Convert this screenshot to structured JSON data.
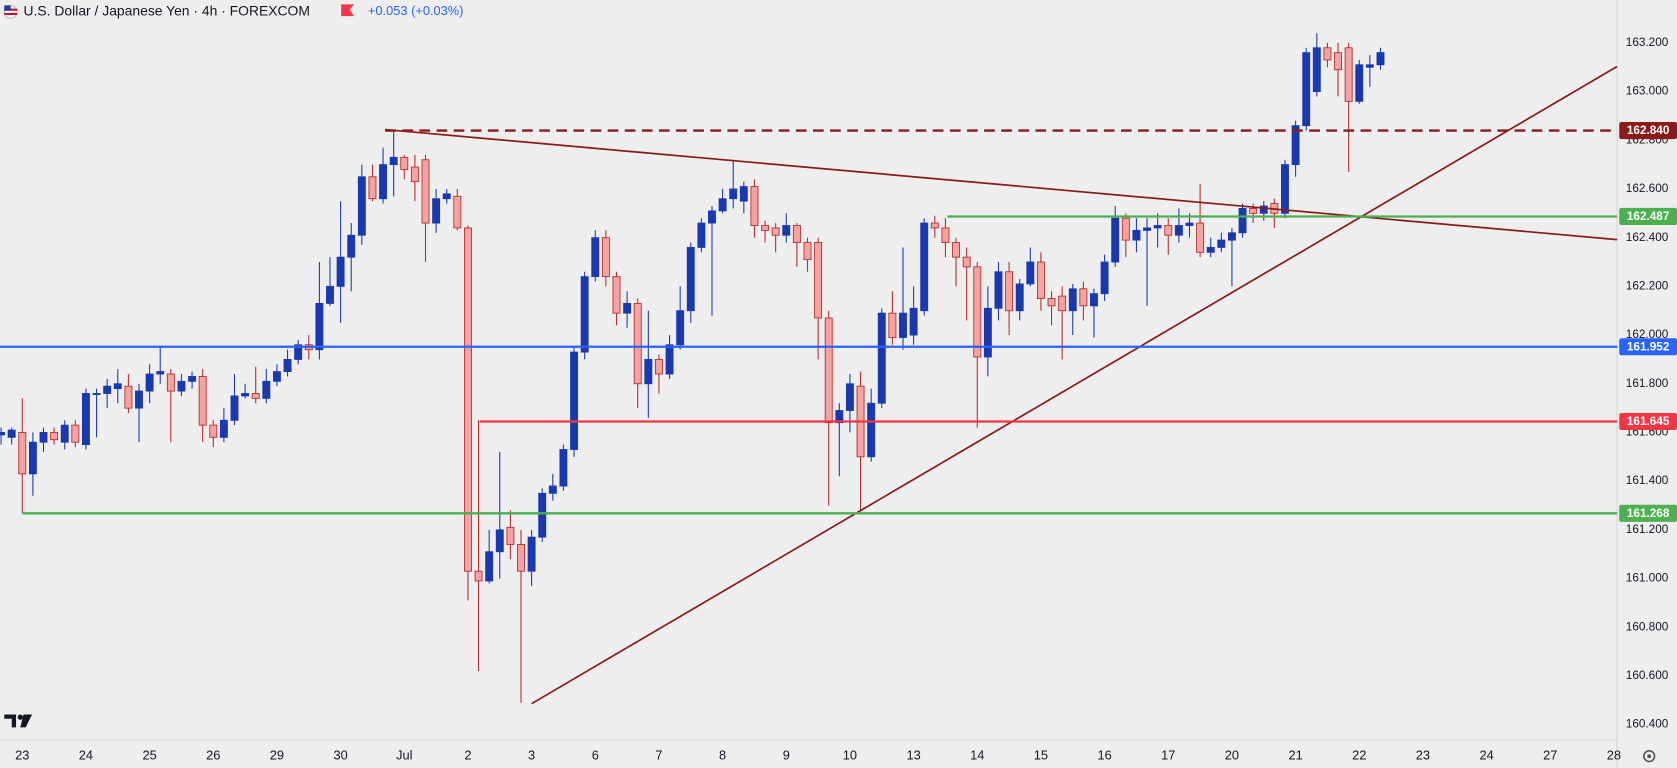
{
  "chart_data": {
    "type": "candlestick",
    "title": "U.S. Dollar / Japanese Yen · 4h · FOREXCOM",
    "change": "+0.053 (+0.03%)",
    "up_color": "#1a39ae",
    "down_color": "#f4a3a3",
    "down_border": "#b52a2a",
    "grid": false,
    "xlim": [
      -0.1,
      152.3
    ],
    "ylim": [
      160.345,
      163.376
    ],
    "xticks": [
      {
        "value": 2,
        "label": "23"
      },
      {
        "value": 8,
        "label": "24"
      },
      {
        "value": 14,
        "label": "25"
      },
      {
        "value": 20,
        "label": "26"
      },
      {
        "value": 26,
        "label": "29"
      },
      {
        "value": 32,
        "label": "30"
      },
      {
        "value": 38,
        "label": "Jul"
      },
      {
        "value": 44,
        "label": "2"
      },
      {
        "value": 50,
        "label": "3"
      },
      {
        "value": 56,
        "label": "6"
      },
      {
        "value": 62,
        "label": "7"
      },
      {
        "value": 68,
        "label": "8"
      },
      {
        "value": 74,
        "label": "9"
      },
      {
        "value": 80,
        "label": "10"
      },
      {
        "value": 86,
        "label": "13"
      },
      {
        "value": 92,
        "label": "14"
      },
      {
        "value": 98,
        "label": "15"
      },
      {
        "value": 104,
        "label": "16"
      },
      {
        "value": 110,
        "label": "17"
      },
      {
        "value": 116,
        "label": "20"
      },
      {
        "value": 122,
        "label": "21"
      },
      {
        "value": 128,
        "label": "22"
      },
      {
        "value": 134,
        "label": "23"
      },
      {
        "value": 140,
        "label": "24"
      },
      {
        "value": 146,
        "label": "27"
      },
      {
        "value": 152,
        "label": "28"
      }
    ],
    "yticks": [
      {
        "value": 160.4,
        "label": "160.400"
      },
      {
        "value": 160.6,
        "label": "160.600"
      },
      {
        "value": 160.8,
        "label": "160.800"
      },
      {
        "value": 161.0,
        "label": "161.000"
      },
      {
        "value": 161.2,
        "label": "161.200"
      },
      {
        "value": 161.4,
        "label": "161.400"
      },
      {
        "value": 161.6,
        "label": "161.600"
      },
      {
        "value": 161.8,
        "label": "161.800"
      },
      {
        "value": 162.0,
        "label": "162.000"
      },
      {
        "value": 162.2,
        "label": "162.200"
      },
      {
        "value": 162.4,
        "label": "162.400"
      },
      {
        "value": 162.6,
        "label": "162.600"
      },
      {
        "value": 162.8,
        "label": "162.800"
      },
      {
        "value": 163.0,
        "label": "163.000"
      },
      {
        "value": 163.2,
        "label": "163.200"
      }
    ],
    "candles": {
      "x": [
        0,
        1,
        2,
        3,
        4,
        5,
        6,
        7,
        8,
        9,
        10,
        11,
        12,
        13,
        14,
        15,
        16,
        17,
        18,
        19,
        20,
        21,
        22,
        23,
        24,
        25,
        26,
        27,
        28,
        29,
        30,
        31,
        32,
        33,
        34,
        35,
        36,
        37,
        38,
        39,
        40,
        41,
        42,
        43,
        44,
        45,
        46,
        47,
        48,
        49,
        50,
        51,
        52,
        53,
        54,
        55,
        56,
        57,
        58,
        59,
        60,
        61,
        62,
        63,
        64,
        65,
        66,
        67,
        68,
        69,
        70,
        71,
        72,
        73,
        74,
        75,
        76,
        77,
        78,
        79,
        80,
        81,
        82,
        83,
        84,
        85,
        86,
        87,
        88,
        89,
        90,
        91,
        92,
        93,
        94,
        95,
        96,
        97,
        98,
        99,
        100,
        101,
        102,
        103,
        104,
        105,
        106,
        107,
        108,
        109,
        110,
        111,
        112,
        113,
        114,
        115,
        116,
        117,
        118,
        119,
        120,
        121,
        122,
        123,
        124,
        125,
        126,
        127,
        128,
        129,
        130
      ],
      "open": [
        161.59,
        161.58,
        161.6,
        161.43,
        161.56,
        161.6,
        161.56,
        161.63,
        161.55,
        161.76,
        161.76,
        161.78,
        161.79,
        161.7,
        161.77,
        161.84,
        161.84,
        161.77,
        161.81,
        161.83,
        161.63,
        161.58,
        161.65,
        161.75,
        161.76,
        161.74,
        161.81,
        161.85,
        161.9,
        161.96,
        161.94,
        162.13,
        162.2,
        162.32,
        162.41,
        162.65,
        162.56,
        162.7,
        162.73,
        162.69,
        162.72,
        162.46,
        162.56,
        162.57,
        162.44,
        161.03,
        160.99,
        161.11,
        161.21,
        161.14,
        161.03,
        161.17,
        161.35,
        161.38,
        161.53,
        161.93,
        162.24,
        162.4,
        162.24,
        162.09,
        162.13,
        161.8,
        161.9,
        161.84,
        161.96,
        162.1,
        162.36,
        162.46,
        162.51,
        162.56,
        162.55,
        162.61,
        162.45,
        162.44,
        162.41,
        162.45,
        162.38,
        162.38,
        162.07,
        161.64,
        161.69,
        161.79,
        161.5,
        161.72,
        162.09,
        161.99,
        162.0,
        162.1,
        162.46,
        162.44,
        162.38,
        162.32,
        162.28,
        161.91,
        162.11,
        162.26,
        162.1,
        162.21,
        162.3,
        162.15,
        162.16,
        162.1,
        162.19,
        162.12,
        162.17,
        162.3,
        162.48,
        162.39,
        162.43,
        162.44,
        162.45,
        162.41,
        162.45,
        162.46,
        162.34,
        162.36,
        162.39,
        162.42,
        162.52,
        162.5,
        162.54,
        162.5,
        162.7,
        162.86,
        163.0,
        163.18,
        163.16,
        163.18,
        162.96,
        163.1,
        163.11
      ],
      "high": [
        161.62,
        161.62,
        161.74,
        161.6,
        161.62,
        161.62,
        161.65,
        161.65,
        161.78,
        161.78,
        161.82,
        161.86,
        161.84,
        161.8,
        161.88,
        161.95,
        161.86,
        161.84,
        161.85,
        161.86,
        161.65,
        161.7,
        161.84,
        161.8,
        161.87,
        161.86,
        161.88,
        161.94,
        161.98,
        162.0,
        162.3,
        162.32,
        162.55,
        162.46,
        162.7,
        162.7,
        162.77,
        162.84,
        162.74,
        162.74,
        162.74,
        162.6,
        162.6,
        162.6,
        162.45,
        161.65,
        161.2,
        161.52,
        161.28,
        161.2,
        161.2,
        161.37,
        161.43,
        161.55,
        161.95,
        162.26,
        162.43,
        162.43,
        162.26,
        162.18,
        162.15,
        162.1,
        161.92,
        162.0,
        162.2,
        162.38,
        162.48,
        162.53,
        162.6,
        162.72,
        162.63,
        162.64,
        162.47,
        162.46,
        162.5,
        162.46,
        162.4,
        162.4,
        162.1,
        161.72,
        161.84,
        161.85,
        161.78,
        162.11,
        162.18,
        162.36,
        162.2,
        162.48,
        162.49,
        162.48,
        162.4,
        162.36,
        162.3,
        162.2,
        162.3,
        162.3,
        162.23,
        162.36,
        162.34,
        162.18,
        162.2,
        162.21,
        162.22,
        162.19,
        162.33,
        162.53,
        162.5,
        162.48,
        162.48,
        162.5,
        162.48,
        162.52,
        162.5,
        162.62,
        162.4,
        162.42,
        162.44,
        162.54,
        162.54,
        162.55,
        162.56,
        162.72,
        162.88,
        163.18,
        163.24,
        163.2,
        163.2,
        163.2,
        163.13,
        163.15,
        163.18
      ],
      "low": [
        161.55,
        161.55,
        161.27,
        161.34,
        161.52,
        161.55,
        161.53,
        161.54,
        161.53,
        161.58,
        161.7,
        161.72,
        161.68,
        161.56,
        161.72,
        161.8,
        161.56,
        161.75,
        161.78,
        161.56,
        161.54,
        161.56,
        161.63,
        161.74,
        161.72,
        161.72,
        161.79,
        161.83,
        161.88,
        161.9,
        161.9,
        162.12,
        162.05,
        162.18,
        162.37,
        162.55,
        162.54,
        162.57,
        162.64,
        162.55,
        162.3,
        162.42,
        162.54,
        162.43,
        160.91,
        160.62,
        160.98,
        161.0,
        161.08,
        160.49,
        160.97,
        161.15,
        161.32,
        161.36,
        161.5,
        161.9,
        162.22,
        162.2,
        162.04,
        162.03,
        161.7,
        161.66,
        161.76,
        161.82,
        161.94,
        162.05,
        162.34,
        162.08,
        162.5,
        162.52,
        162.5,
        162.4,
        162.38,
        162.34,
        162.38,
        162.28,
        162.26,
        161.9,
        161.3,
        161.42,
        161.6,
        161.28,
        161.48,
        161.7,
        161.96,
        161.94,
        161.96,
        162.08,
        162.4,
        162.32,
        162.2,
        162.06,
        161.62,
        161.83,
        162.06,
        162.0,
        162.06,
        162.2,
        162.1,
        162.04,
        161.9,
        162.0,
        162.06,
        161.99,
        162.14,
        162.28,
        162.32,
        162.34,
        162.12,
        162.36,
        162.33,
        162.38,
        162.4,
        162.32,
        162.32,
        162.34,
        162.2,
        162.4,
        162.46,
        162.47,
        162.44,
        162.48,
        162.65,
        162.84,
        162.98,
        163.1,
        162.98,
        162.67,
        162.95,
        163.02,
        163.09
      ],
      "close": [
        161.6,
        161.61,
        161.43,
        161.56,
        161.6,
        161.57,
        161.63,
        161.56,
        161.76,
        161.76,
        161.79,
        161.8,
        161.7,
        161.77,
        161.84,
        161.85,
        161.77,
        161.81,
        161.83,
        161.63,
        161.58,
        161.65,
        161.75,
        161.76,
        161.74,
        161.81,
        161.85,
        161.9,
        161.96,
        161.94,
        162.13,
        162.2,
        162.32,
        162.41,
        162.65,
        162.56,
        162.7,
        162.73,
        162.68,
        162.63,
        162.46,
        162.56,
        162.58,
        162.44,
        161.03,
        160.99,
        161.11,
        161.2,
        161.14,
        161.03,
        161.17,
        161.35,
        161.38,
        161.53,
        161.93,
        162.24,
        162.4,
        162.24,
        162.09,
        162.13,
        161.8,
        161.9,
        161.84,
        161.96,
        162.1,
        162.36,
        162.46,
        162.51,
        162.56,
        162.6,
        162.61,
        162.45,
        162.43,
        162.41,
        162.45,
        162.38,
        162.31,
        162.07,
        161.64,
        161.69,
        161.8,
        161.5,
        161.72,
        162.09,
        161.99,
        162.09,
        162.11,
        162.46,
        162.44,
        162.38,
        162.32,
        162.28,
        161.91,
        162.11,
        162.26,
        162.1,
        162.21,
        162.3,
        162.15,
        162.12,
        162.1,
        162.19,
        162.12,
        162.17,
        162.3,
        162.48,
        162.39,
        162.43,
        162.44,
        162.45,
        162.41,
        162.45,
        162.46,
        162.34,
        162.36,
        162.39,
        162.42,
        162.52,
        162.5,
        162.53,
        162.5,
        162.7,
        162.86,
        163.16,
        163.18,
        163.13,
        163.09,
        162.96,
        163.11,
        163.11,
        163.16
      ]
    },
    "levels": [
      {
        "value": 162.84,
        "label": "162.840",
        "color": "#8b1a1a",
        "style": "dashed",
        "start": 36.2
      },
      {
        "value": 162.487,
        "label": "162.487",
        "color": "#4caf50",
        "style": "solid",
        "start": 89.2
      },
      {
        "value": 161.952,
        "label": "161.952",
        "color": "#2962ff",
        "style": "solid",
        "start": -0.1
      },
      {
        "value": 161.645,
        "label": "161.645",
        "color": "#f23645",
        "style": "solid",
        "start": 45.1
      },
      {
        "value": 161.268,
        "label": "161.268",
        "color": "#4caf50",
        "style": "solid",
        "start": 2.0
      }
    ],
    "trendlines": [
      {
        "x": [
          36.2,
          152.3
        ],
        "y": [
          162.844,
          162.392
        ],
        "color": "#8b1a1a"
      },
      {
        "x": [
          50.0,
          152.3
        ],
        "y": [
          160.486,
          163.103
        ],
        "color": "#8b1a1a"
      }
    ]
  }
}
